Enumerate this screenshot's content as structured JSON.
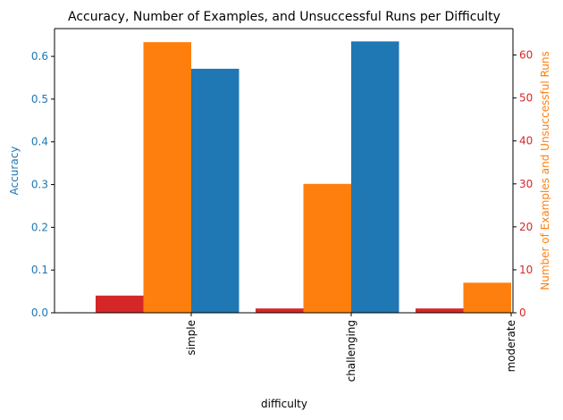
{
  "chart_data": {
    "type": "bar",
    "title": "Accuracy, Number of Examples, and Unsuccessful Runs per Difficulty",
    "xlabel": "difficulty",
    "categories": [
      "simple",
      "challenging",
      "moderate"
    ],
    "left_axis": {
      "label": "Accuracy",
      "color": "#1f77b4",
      "ylim": [
        0,
        0.665
      ],
      "ticks": [
        0.0,
        0.1,
        0.2,
        0.3,
        0.4,
        0.5,
        0.6
      ],
      "tick_labels": [
        "0.0",
        "0.1",
        "0.2",
        "0.3",
        "0.4",
        "0.5",
        "0.6"
      ]
    },
    "right_axis": {
      "label": "Number of Examples and Unsuccessful Runs",
      "color_label": "#ff7f0e",
      "color_ticks": "#d62728",
      "ylim": [
        0,
        66.15
      ],
      "ticks": [
        0,
        10,
        20,
        30,
        40,
        50,
        60
      ],
      "tick_labels": [
        "0",
        "10",
        "20",
        "30",
        "40",
        "50",
        "60"
      ]
    },
    "series": [
      {
        "color": "#1f77b4",
        "axis": "left",
        "offset": 0,
        "values": [
          0.571,
          0.635,
          0.0
        ]
      },
      {
        "color": "#ff7f0e",
        "axis": "right",
        "offset": -1,
        "values": [
          63,
          30,
          7
        ]
      },
      {
        "color": "#d62728",
        "axis": "right",
        "offset": -2,
        "values": [
          4,
          1,
          1
        ]
      }
    ],
    "grid": false,
    "legend": "none"
  }
}
